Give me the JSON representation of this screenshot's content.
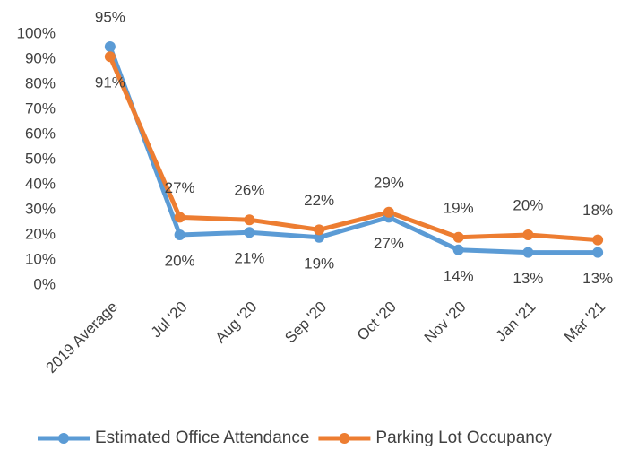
{
  "chart_data": {
    "type": "line",
    "categories": [
      "2019 Average",
      "Jul '20",
      "Aug '20",
      "Sep '20",
      "Oct '20",
      "Nov '20",
      "Jan '21",
      "Mar '21"
    ],
    "series": [
      {
        "name": "Estimated Office Attendance",
        "color": "#5b9bd5",
        "values": [
          95,
          20,
          21,
          19,
          27,
          14,
          13,
          13
        ],
        "value_labels": [
          "95%",
          "20%",
          "21%",
          "19%",
          "27%",
          "14%",
          "13%",
          "13%"
        ]
      },
      {
        "name": "Parking Lot Occupancy",
        "color": "#ed7d31",
        "values": [
          91,
          27,
          26,
          22,
          29,
          19,
          20,
          18
        ],
        "value_labels": [
          "91%",
          "27%",
          "26%",
          "22%",
          "29%",
          "19%",
          "20%",
          "18%"
        ]
      }
    ],
    "ylim": [
      0,
      100
    ],
    "yticks": [
      {
        "value": 0,
        "label": "0%"
      },
      {
        "value": 10,
        "label": "10%"
      },
      {
        "value": 20,
        "label": "20%"
      },
      {
        "value": 30,
        "label": "30%"
      },
      {
        "value": 40,
        "label": "40%"
      },
      {
        "value": 50,
        "label": "50%"
      },
      {
        "value": 60,
        "label": "60%"
      },
      {
        "value": 70,
        "label": "70%"
      },
      {
        "value": 80,
        "label": "80%"
      },
      {
        "value": 90,
        "label": "90%"
      },
      {
        "value": 100,
        "label": "100%"
      }
    ],
    "grid": false,
    "legend": "bottom"
  }
}
